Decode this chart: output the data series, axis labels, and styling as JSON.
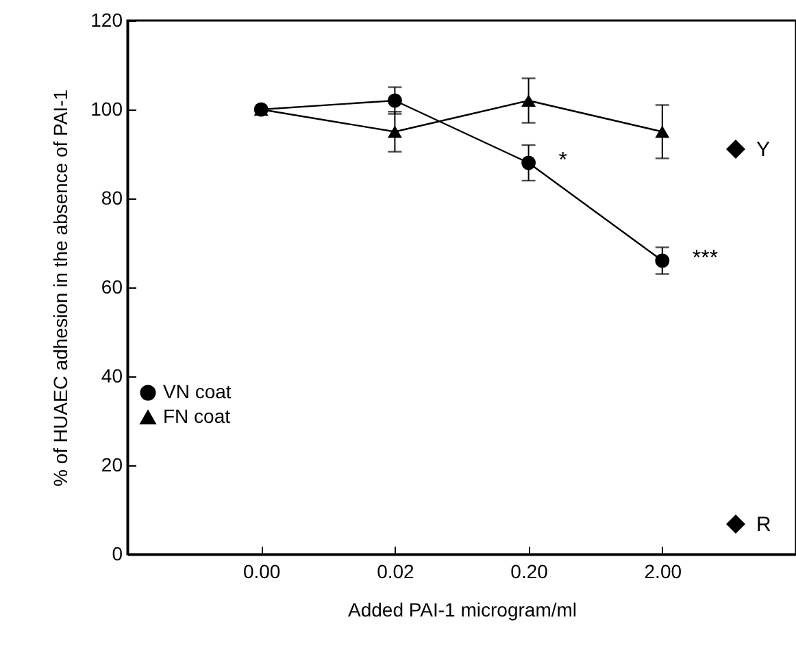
{
  "chart_data": {
    "type": "line",
    "xlabel": "Added PAI-1 microgram/ml",
    "ylabel": "% of HUAEC adhesion in the absence of PAI-1",
    "categories": [
      "0.00",
      "0.02",
      "0.20",
      "2.00"
    ],
    "series": [
      {
        "name": "VN coat",
        "color": "#000000",
        "marker": "circle",
        "values": [
          100,
          102,
          88,
          66
        ],
        "errors": [
          null,
          3,
          4,
          3
        ]
      },
      {
        "name": "FN coat",
        "color": "#000000",
        "marker": "triangle",
        "values": [
          100,
          95,
          102,
          95
        ],
        "errors": [
          null,
          4.5,
          5,
          6
        ]
      }
    ],
    "ylim": [
      0,
      120
    ],
    "yticks": [
      0,
      20,
      40,
      60,
      80,
      100,
      120
    ],
    "grid": false,
    "legend": "left",
    "annotations": [
      {
        "text": "*",
        "x": "0.20",
        "y": 88
      },
      {
        "text": "***",
        "x": "2.00",
        "y": 66
      },
      "Y",
      "R"
    ]
  }
}
